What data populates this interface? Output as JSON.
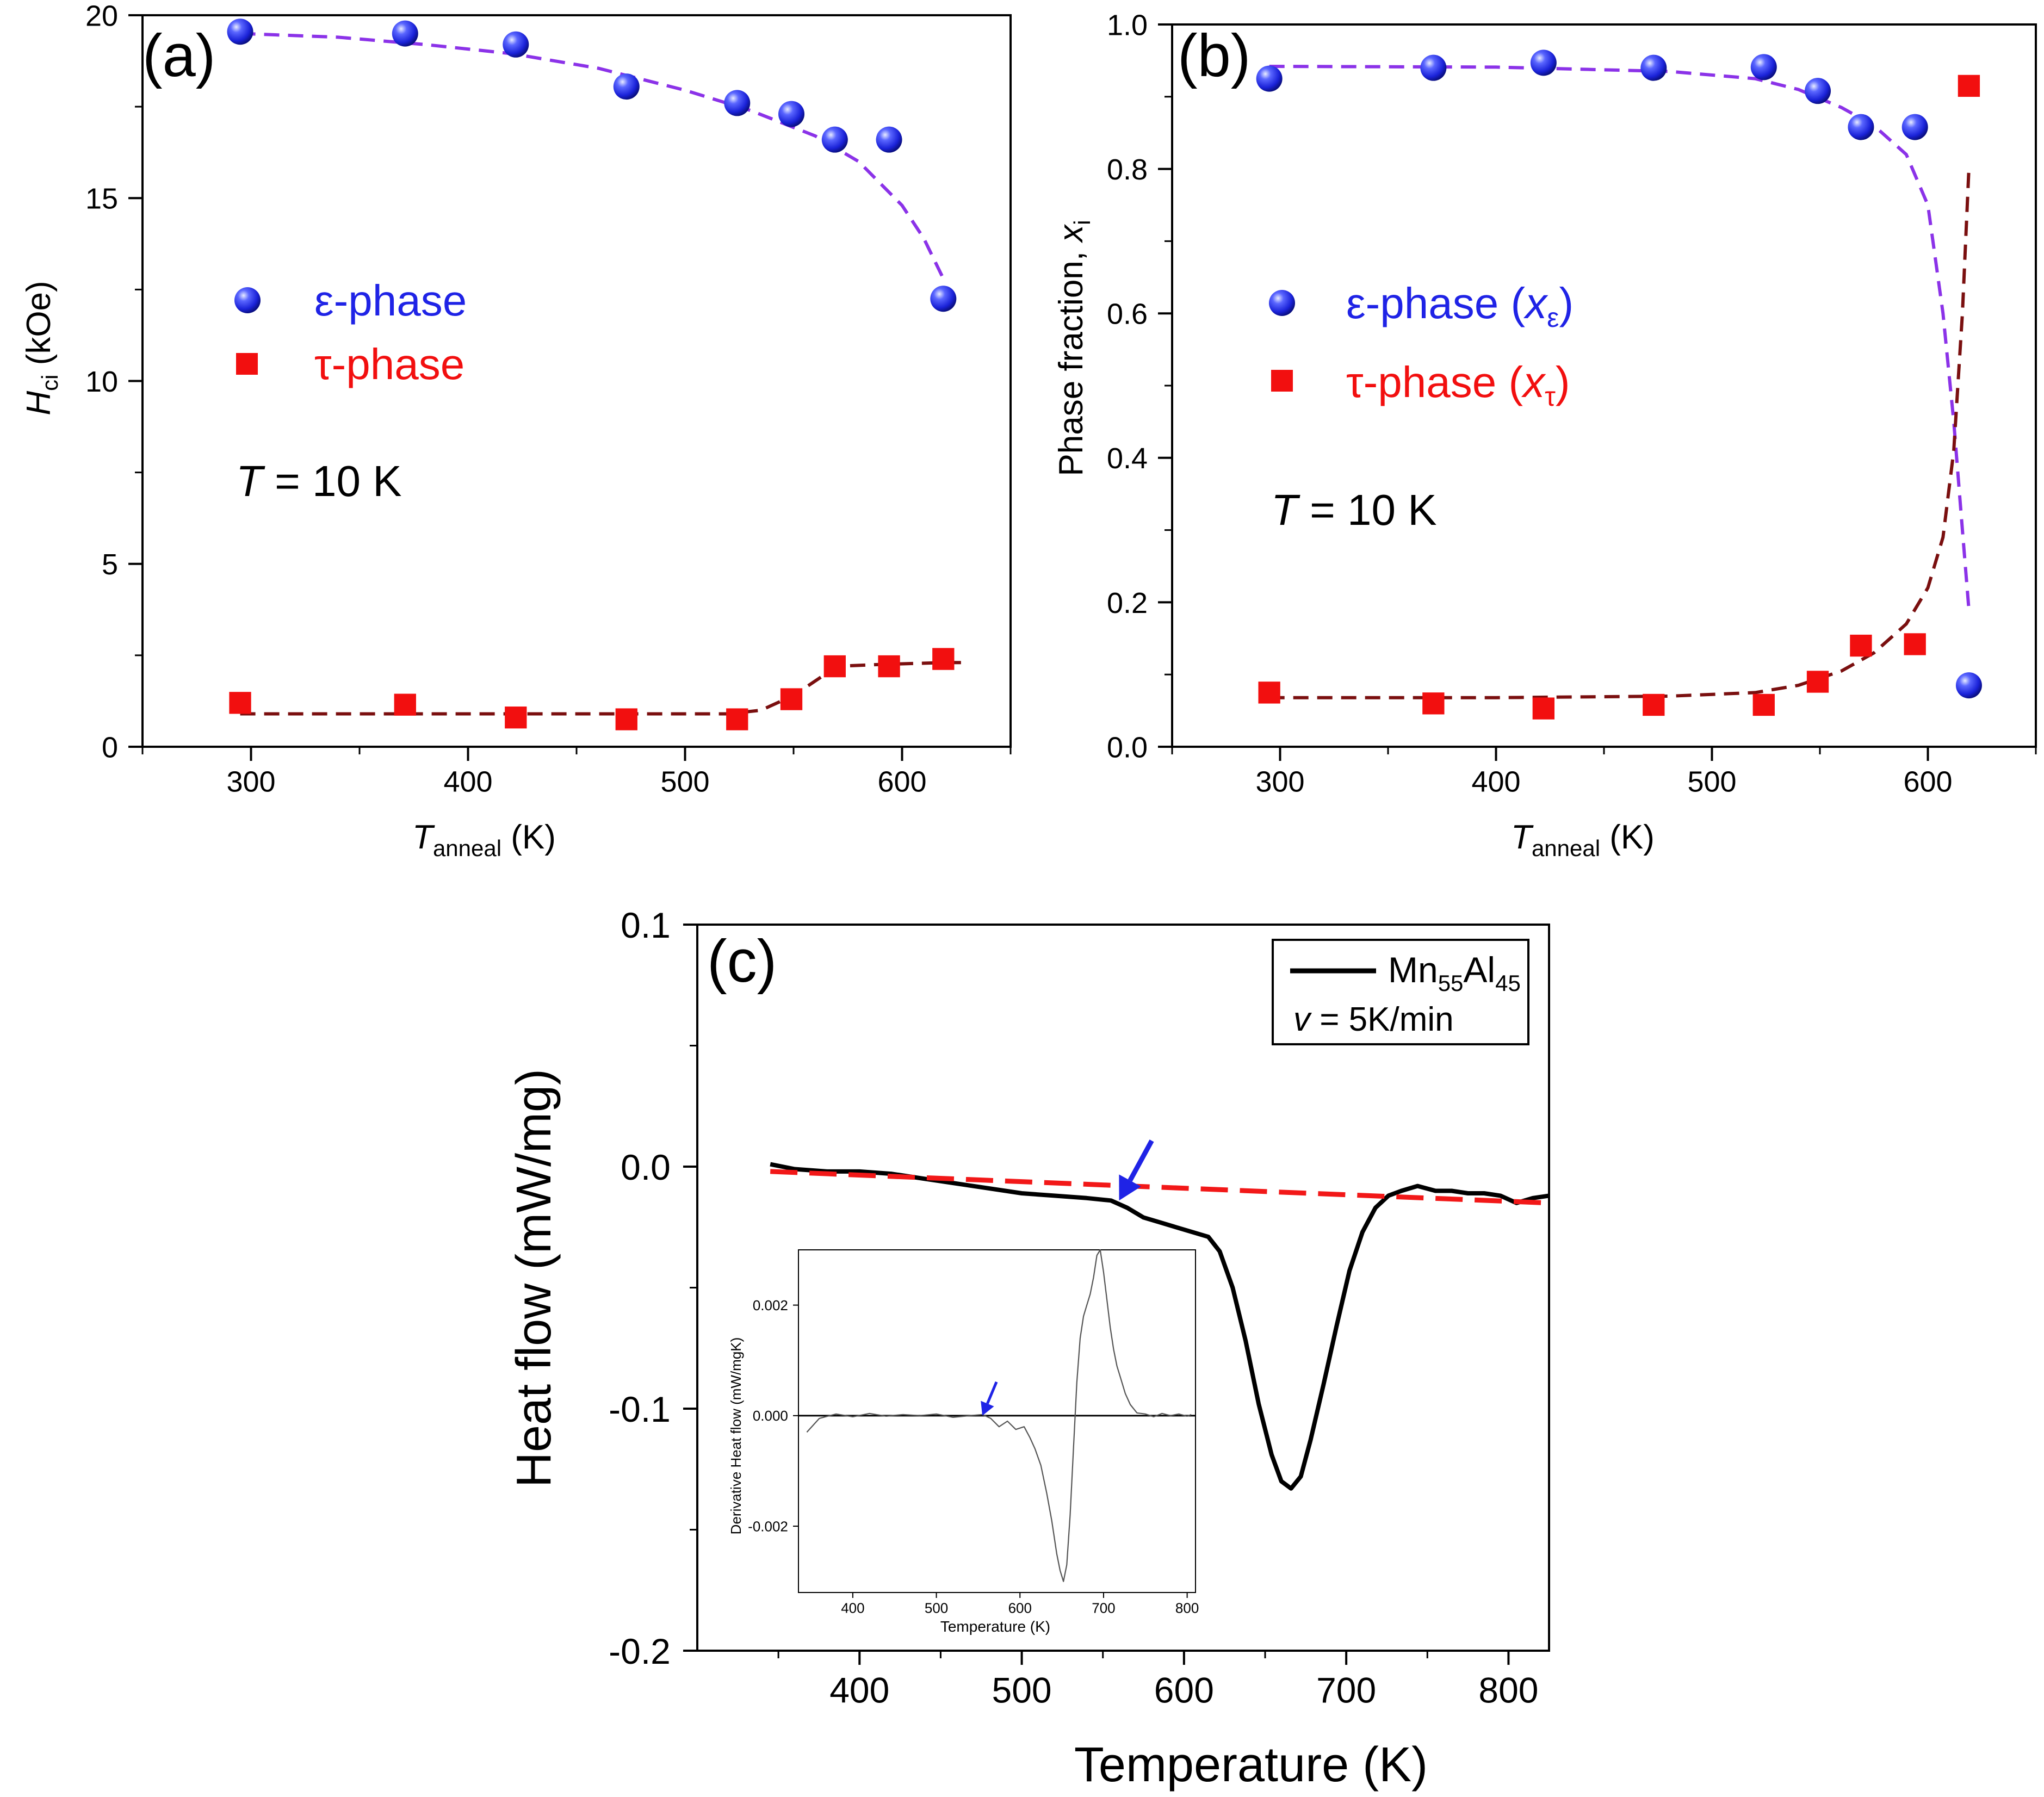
{
  "chart_data": [
    {
      "panel": "(a)",
      "type": "scatter",
      "xlabel": {
        "main": "T",
        "sub": "anneal",
        "unit": " (K)"
      },
      "ylabel": {
        "main": "H",
        "sub": "ci",
        "unit": " (kOe)"
      },
      "xlim": [
        250,
        650
      ],
      "ylim": [
        0,
        20
      ],
      "xticks": [
        300,
        400,
        500,
        600
      ],
      "yticks": [
        0,
        5,
        10,
        15,
        20
      ],
      "annotation": {
        "var": "T",
        "text": " = 10 K"
      },
      "series": [
        {
          "name": "ε-phase",
          "color": "#1f23e6",
          "marker": "sphere",
          "x": [
            295,
            371,
            422,
            473,
            524,
            549,
            569,
            594,
            619
          ],
          "y": [
            19.55,
            19.5,
            19.2,
            18.05,
            17.6,
            17.3,
            16.6,
            16.6,
            12.25
          ]
        },
        {
          "name": "τ-phase",
          "color": "#f20f0f",
          "marker": "square",
          "x": [
            295,
            371,
            422,
            473,
            524,
            549,
            569,
            594,
            619
          ],
          "y": [
            1.2,
            1.15,
            0.8,
            0.75,
            0.75,
            1.3,
            2.2,
            2.2,
            2.4
          ]
        }
      ],
      "fits": [
        {
          "color": "#8b32e8",
          "x": [
            295,
            340,
            380,
            420,
            460,
            500,
            530,
            560,
            580,
            600,
            610,
            619
          ],
          "y": [
            19.5,
            19.4,
            19.2,
            18.95,
            18.55,
            17.95,
            17.4,
            16.7,
            16.0,
            14.8,
            13.9,
            12.8
          ]
        },
        {
          "color": "#7a0f0f",
          "x": [
            295,
            400,
            520,
            535,
            550,
            560,
            570,
            590,
            619,
            630
          ],
          "y": [
            0.9,
            0.9,
            0.9,
            1.0,
            1.4,
            1.8,
            2.2,
            2.25,
            2.3,
            2.3
          ]
        }
      ]
    },
    {
      "panel": "(b)",
      "type": "scatter",
      "xlabel": {
        "main": "T",
        "sub": "anneal",
        "unit": " (K)"
      },
      "ylabel": {
        "main": "Phase fraction, ",
        "var": "x",
        "sub": "i"
      },
      "xlim": [
        250,
        650
      ],
      "ylim": [
        0,
        1.0
      ],
      "xticks": [
        300,
        400,
        500,
        600
      ],
      "yticks": [
        "0.0",
        "0.2",
        "0.4",
        "0.6",
        "0.8",
        "1.0"
      ],
      "annotation": {
        "var": "T",
        "text": " = 10 K"
      },
      "series": [
        {
          "name": "ε-phase",
          "var": "x",
          "sub": "ε",
          "color": "#1f23e6",
          "marker": "sphere",
          "x": [
            295,
            371,
            422,
            473,
            524,
            549,
            569,
            594,
            619
          ],
          "y": [
            0.925,
            0.94,
            0.947,
            0.94,
            0.941,
            0.908,
            0.858,
            0.858,
            0.085
          ]
        },
        {
          "name": "τ-phase",
          "var": "x",
          "sub": "τ",
          "color": "#f20f0f",
          "marker": "square",
          "x": [
            295,
            371,
            422,
            473,
            524,
            549,
            569,
            594,
            619
          ],
          "y": [
            0.075,
            0.06,
            0.053,
            0.058,
            0.058,
            0.09,
            0.14,
            0.142,
            0.915
          ]
        }
      ],
      "fits": [
        {
          "color": "#8b32e8",
          "x": [
            295,
            400,
            480,
            520,
            540,
            560,
            575,
            590,
            600,
            607,
            612,
            616,
            619
          ],
          "y": [
            0.942,
            0.941,
            0.935,
            0.925,
            0.91,
            0.885,
            0.86,
            0.82,
            0.75,
            0.6,
            0.45,
            0.3,
            0.19
          ]
        },
        {
          "color": "#7a0f0f",
          "x": [
            295,
            400,
            480,
            520,
            540,
            560,
            575,
            590,
            600,
            607,
            612,
            616,
            619
          ],
          "y": [
            0.068,
            0.068,
            0.07,
            0.075,
            0.085,
            0.105,
            0.13,
            0.17,
            0.22,
            0.29,
            0.41,
            0.6,
            0.8
          ]
        }
      ]
    },
    {
      "panel": "(c)",
      "type": "line",
      "xlabel": "Temperature (K)",
      "ylabel": "Heat flow (mW/mg)",
      "xlim": [
        300,
        825
      ],
      "ylim": [
        -0.2,
        0.1
      ],
      "xticks": [
        400,
        500,
        600,
        700,
        800
      ],
      "yticks": [
        "-0.2",
        "-0.1",
        "0.0",
        "0.1"
      ],
      "legend": {
        "pre": "Mn",
        "sub1": "55",
        "mid": "Al",
        "sub2": "45",
        "rate_var": "v",
        "rate_text": " = 5K/min"
      },
      "series": [
        {
          "name": "Mn55Al45",
          "color": "#000000",
          "x": [
            345,
            360,
            380,
            400,
            420,
            440,
            460,
            480,
            500,
            520,
            540,
            555,
            565,
            575,
            585,
            595,
            605,
            615,
            622,
            630,
            638,
            646,
            654,
            660,
            666,
            672,
            678,
            686,
            694,
            702,
            710,
            718,
            726,
            734,
            744,
            755,
            765,
            775,
            785,
            795,
            805,
            815,
            825
          ],
          "y": [
            0.001,
            -0.001,
            -0.002,
            -0.002,
            -0.003,
            -0.005,
            -0.007,
            -0.009,
            -0.011,
            -0.012,
            -0.013,
            -0.014,
            -0.017,
            -0.021,
            -0.023,
            -0.025,
            -0.027,
            -0.029,
            -0.035,
            -0.05,
            -0.072,
            -0.098,
            -0.119,
            -0.13,
            -0.133,
            -0.128,
            -0.113,
            -0.09,
            -0.066,
            -0.043,
            -0.027,
            -0.017,
            -0.012,
            -0.01,
            -0.008,
            -0.01,
            -0.01,
            -0.011,
            -0.011,
            -0.012,
            -0.015,
            -0.013,
            -0.012
          ]
        },
        {
          "name": "baseline",
          "color": "#f21818",
          "dashed": true,
          "x": [
            345,
            825
          ],
          "y": [
            -0.002,
            -0.015
          ]
        }
      ],
      "arrow": {
        "x": 560,
        "y": -0.014
      },
      "inset": {
        "xlabel": "Temperature (K)",
        "ylabel": "Derivative Heat flow (mW/mgK)",
        "xlim": [
          335,
          810
        ],
        "ylim": [
          -0.0032,
          0.003
        ],
        "xticks": [
          400,
          500,
          600,
          700,
          800
        ],
        "yticks": [
          "-0.002",
          "0.000",
          "0.002"
        ],
        "arrow": {
          "x": 555,
          "y": 0.0
        },
        "series": [
          {
            "name": "derivative",
            "color": "#555555",
            "x": [
              345,
              360,
              380,
              400,
              420,
              440,
              460,
              480,
              500,
              520,
              540,
              555,
              565,
              575,
              585,
              595,
              605,
              612,
              618,
              625,
              632,
              638,
              644,
              648,
              652,
              656,
              660,
              664,
              668,
              672,
              676,
              680,
              684,
              688,
              692,
              696,
              700,
              704,
              708,
              712,
              716,
              720,
              726,
              732,
              740,
              750,
              760,
              770,
              780,
              790,
              800,
              805
            ],
            "y": [
              -0.0003,
              -5e-05,
              3e-05,
              -2e-05,
              4e-05,
              -1e-05,
              2e-05,
              0.0,
              3e-05,
              -3e-05,
              0.0,
              2e-05,
              -5e-05,
              -0.0002,
              -0.0001,
              -0.00025,
              -0.0002,
              -0.0004,
              -0.0006,
              -0.0009,
              -0.0014,
              -0.0019,
              -0.0025,
              -0.0028,
              -0.003,
              -0.0027,
              -0.0018,
              -0.0006,
              0.0006,
              0.0014,
              0.0018,
              0.002,
              0.0022,
              0.0025,
              0.0029,
              0.003,
              0.0026,
              0.0021,
              0.0016,
              0.0012,
              0.0009,
              0.0007,
              0.0004,
              0.0002,
              5e-05,
              3e-05,
              -2e-05,
              4e-05,
              0.0,
              3e-05,
              -1e-05,
              2e-05
            ]
          }
        ]
      }
    }
  ]
}
